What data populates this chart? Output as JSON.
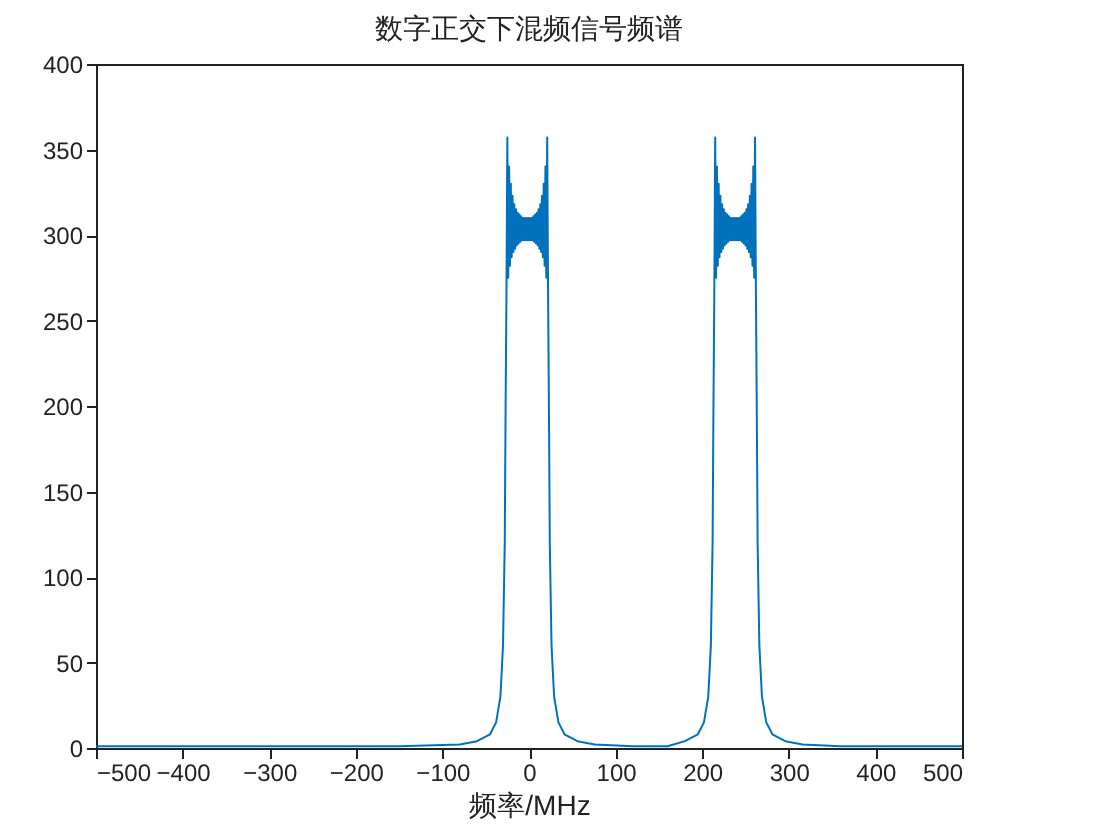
{
  "chart_data": {
    "type": "line",
    "title": "数字正交下混频信号频谱",
    "xlabel": "频率/MHz",
    "xlim": [
      -500,
      500
    ],
    "xticks": [
      -500,
      -400,
      -300,
      -200,
      -100,
      0,
      100,
      200,
      300,
      400,
      500
    ],
    "ylim": [
      0,
      400
    ],
    "yticks": [
      0,
      50,
      100,
      150,
      200,
      250,
      300,
      350,
      400
    ],
    "grid": false,
    "series": [
      {
        "color": "#0072bd",
        "x": [
          -500,
          -300,
          -150,
          -80,
          -60,
          -45,
          -38,
          -33,
          -30,
          -28,
          -27,
          -26,
          -25,
          -24,
          -23,
          -22,
          -21,
          -20,
          -19,
          -18,
          -17,
          -16,
          -15,
          -14,
          -13,
          -12,
          -11,
          -10,
          -9,
          -8,
          -7,
          -6,
          -5,
          -4,
          -3,
          -2,
          -1,
          0,
          1,
          2,
          3,
          4,
          5,
          6,
          7,
          8,
          9,
          10,
          11,
          12,
          13,
          14,
          15,
          16,
          17,
          18,
          19,
          20,
          21,
          22,
          23,
          24,
          26,
          29,
          34,
          41,
          56,
          76,
          120,
          160,
          180,
          195,
          202,
          207,
          210,
          212,
          213,
          214,
          215,
          216,
          217,
          218,
          219,
          220,
          221,
          222,
          223,
          224,
          225,
          226,
          227,
          228,
          229,
          230,
          231,
          232,
          233,
          234,
          235,
          236,
          237,
          238,
          239,
          240,
          241,
          242,
          243,
          244,
          245,
          246,
          247,
          248,
          249,
          250,
          251,
          252,
          253,
          254,
          255,
          256,
          257,
          258,
          259,
          260,
          261,
          262,
          263,
          264,
          266,
          269,
          274,
          281,
          296,
          316,
          360,
          500
        ],
        "values": [
          1,
          1,
          1,
          2,
          4,
          8,
          15,
          30,
          60,
          120,
          200,
          268,
          357,
          275,
          340,
          282,
          330,
          287,
          323,
          290,
          318,
          292,
          315,
          294,
          313,
          295,
          312,
          296,
          311,
          297,
          310,
          297,
          310,
          297,
          310,
          297,
          310,
          297,
          310,
          297,
          310,
          297,
          311,
          296,
          312,
          295,
          313,
          294,
          315,
          292,
          318,
          290,
          323,
          287,
          330,
          282,
          340,
          275,
          357,
          268,
          200,
          120,
          60,
          30,
          15,
          8,
          4,
          2,
          1,
          1,
          4,
          8,
          15,
          30,
          60,
          120,
          200,
          268,
          357,
          275,
          340,
          282,
          330,
          287,
          323,
          290,
          318,
          292,
          315,
          294,
          313,
          295,
          312,
          296,
          311,
          297,
          310,
          297,
          310,
          297,
          310,
          297,
          310,
          297,
          310,
          297,
          310,
          297,
          311,
          296,
          312,
          295,
          313,
          294,
          315,
          292,
          318,
          290,
          323,
          287,
          330,
          282,
          340,
          275,
          357,
          268,
          200,
          120,
          60,
          30,
          15,
          8,
          4,
          2,
          1,
          1
        ]
      }
    ]
  }
}
